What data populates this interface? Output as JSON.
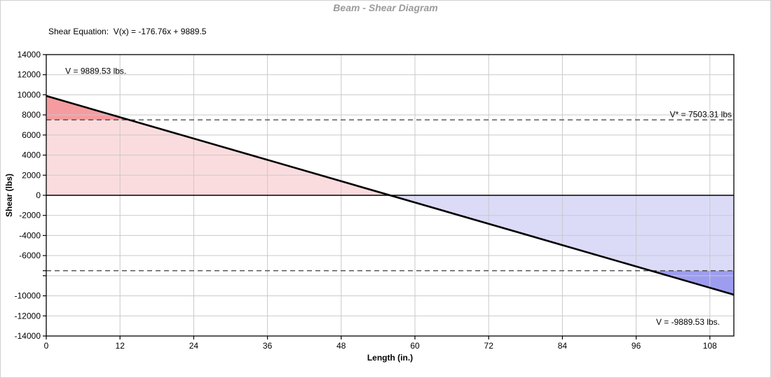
{
  "equation_label": "Shear Equation:  V(x) = -176.76x + 9889.5",
  "chart_data": {
    "type": "line",
    "title": "Beam - Shear Diagram",
    "xlabel": "Length (in.)",
    "ylabel": "Shear (lbs)",
    "xlim": [
      0,
      111.9
    ],
    "ylim": [
      -14000,
      14000
    ],
    "x_ticks": [
      0,
      12,
      24,
      36,
      48,
      60,
      72,
      84,
      96,
      108
    ],
    "y_ticks_labeled": [
      14000,
      12000,
      10000,
      8000,
      6000,
      4000,
      2000,
      0,
      -2000,
      -4000,
      -6000,
      -10000,
      -12000,
      -14000
    ],
    "y_ticks_unlabeled": [
      -7503.31,
      -8000
    ],
    "grid_step_y": 2000,
    "grid": true,
    "series": [
      {
        "name": "shear",
        "x": [
          0,
          111.9
        ],
        "y": [
          9889.53,
          -9889.53
        ]
      }
    ],
    "shear_equation": {
      "slope": -176.76,
      "intercept": 9889.5
    },
    "v_star": 7503.31,
    "reference_lines": [
      7503.31,
      -7503.31
    ],
    "annotations": {
      "v_start": "V = 9889.53 lbs.",
      "v_star": "V* = 7503.31 lbs",
      "v_end": "V = -9889.53 lbs."
    },
    "colors": {
      "positive_fill": "#FBDCDE",
      "positive_fill_exceed": "#F59CA0",
      "negative_fill": "#DBDBF8",
      "negative_fill_exceed": "#9D9DEF",
      "line": "#000000",
      "zero_line": "#000000",
      "grid": "#C9C9C9",
      "reference_line": "#3C3C3C",
      "title": "#9A9A9A"
    }
  }
}
